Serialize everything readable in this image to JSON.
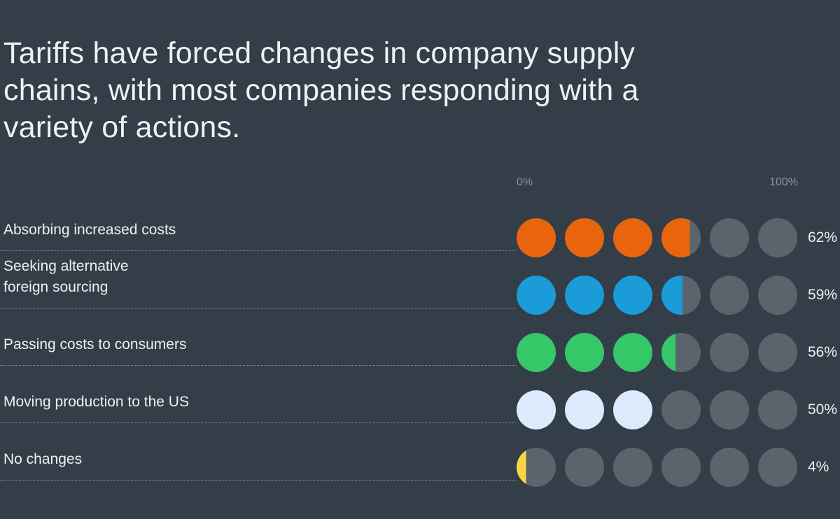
{
  "title": "Tariffs have forced changes in company supply chains, with most companies responding with a variety of actions.",
  "chart_data": {
    "type": "bar",
    "variant": "dot-pictogram",
    "title": "Tariffs have forced changes in company supply chains, with most companies responding with a variety of actions.",
    "categories": [
      "Absorbing increased costs",
      "Seeking alternative foreign sourcing",
      "Passing costs to consumers",
      "Moving production to the US",
      "No changes"
    ],
    "category_lines": [
      [
        "Absorbing increased costs"
      ],
      [
        "Seeking alternative",
        "foreign sourcing"
      ],
      [
        "Passing costs to consumers"
      ],
      [
        "Moving production to the US"
      ],
      [
        "No changes"
      ]
    ],
    "values": [
      62,
      59,
      56,
      50,
      4
    ],
    "value_labels": [
      "62%",
      "59%",
      "56%",
      "50%",
      "4%"
    ],
    "series_colors": [
      "#E8650D",
      "#1B9CD8",
      "#35C768",
      "#DCEBFC",
      "#F8D648"
    ],
    "dots_per_row": 6,
    "xlim": [
      0,
      100
    ],
    "x_tick_labels": [
      "0%",
      "100%"
    ],
    "legend_position": "none",
    "grid": "dotted-row-separators"
  },
  "colors": {
    "background": "#333E48",
    "empty_dot": "#5A646D",
    "title_text": "#EDF1F3",
    "label_text": "#EDF1F3",
    "value_text": "#EDF1F3",
    "axis_label_text": "#8C959D",
    "separator": "#8A939B"
  }
}
